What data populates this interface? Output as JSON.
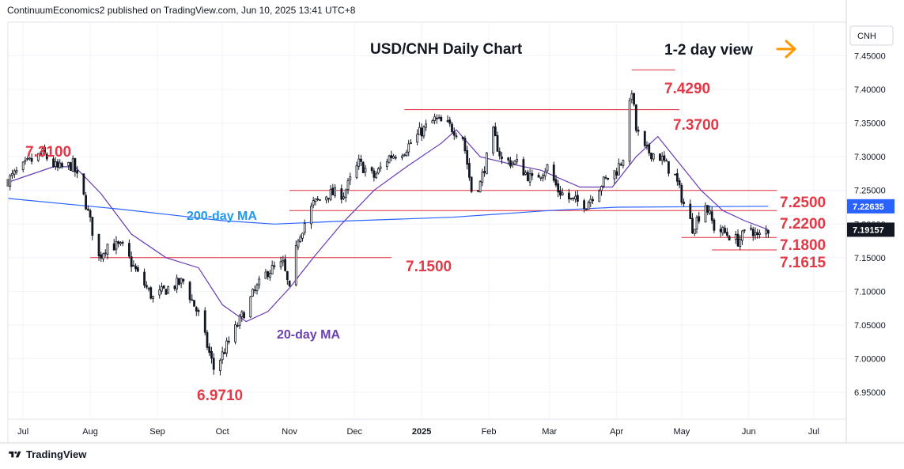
{
  "header": {
    "attribution": "ContinuumEconomics2 published on TradingView.com, Jun 10, 2025 13:41 UTC+8"
  },
  "footer": {
    "brand": "TradingView"
  },
  "chart_data": {
    "type": "candlestick",
    "title": "USD/CNH Daily Chart",
    "subtitle": "1-2 day view",
    "symbol": "CNH",
    "ylim": [
      6.91,
      7.5
    ],
    "y_ticks": [
      "7.45000",
      "7.40000",
      "7.35000",
      "7.30000",
      "7.25000",
      "7.20000",
      "7.15000",
      "7.10000",
      "7.05000",
      "7.00000",
      "6.95000"
    ],
    "y_tick_values": [
      7.45,
      7.4,
      7.35,
      7.3,
      7.25,
      7.2,
      7.15,
      7.1,
      7.05,
      7.0,
      6.95
    ],
    "x_ticks": [
      "Jul",
      "Aug",
      "Sep",
      "Oct",
      "Nov",
      "Dec",
      "2025",
      "Feb",
      "Mar",
      "Apr",
      "May",
      "Jun",
      "Jul"
    ],
    "x_tick_dates": [
      "2024-07-01",
      "2024-08-01",
      "2024-09-01",
      "2024-10-01",
      "2024-11-01",
      "2024-12-01",
      "2025-01-01",
      "2025-02-01",
      "2025-03-01",
      "2025-04-01",
      "2025-05-01",
      "2025-06-01",
      "2025-07-01"
    ],
    "date_range": [
      "2024-06-24",
      "2025-07-16"
    ],
    "price_badges": [
      {
        "label": "7.22635",
        "value": 7.22635,
        "color": "#2962ff"
      },
      {
        "label": "7.19157",
        "value": 7.19157,
        "color": "#131722"
      }
    ],
    "levels": [
      {
        "label": "7.4290",
        "value": 7.429,
        "from": "2025-04-08",
        "to": "2025-04-28"
      },
      {
        "label": "7.3700",
        "value": 7.37,
        "from": "2024-12-24",
        "to": "2025-04-30"
      },
      {
        "label": "7.3100",
        "value": 7.31,
        "label_only": true
      },
      {
        "label": "7.2500",
        "value": 7.25,
        "from": "2024-11-01",
        "to": "2025-06-14"
      },
      {
        "label": "7.2200",
        "value": 7.22,
        "from": "2024-11-01",
        "to": "2025-06-14"
      },
      {
        "label": "7.1800",
        "value": 7.18,
        "from": "2025-05-01",
        "to": "2025-06-14"
      },
      {
        "label": "7.1615",
        "value": 7.1615,
        "from": "2025-05-15",
        "to": "2025-06-14"
      },
      {
        "label": "7.1500",
        "value": 7.15,
        "from": "2024-08-01",
        "to": "2024-12-18"
      },
      {
        "label": "6.9710",
        "value": 6.971,
        "label_only": true
      }
    ],
    "ma_labels": {
      "ma200": "200-day MA",
      "ma20": "20-day MA"
    },
    "series": [
      {
        "name": "USD/CNH",
        "anchors": [
          [
            "2024-06-24",
            7.265
          ],
          [
            "2024-07-03",
            7.29
          ],
          [
            "2024-07-10",
            7.305
          ],
          [
            "2024-07-17",
            7.282
          ],
          [
            "2024-07-24",
            7.288
          ],
          [
            "2024-07-30",
            7.23
          ],
          [
            "2024-08-05",
            7.15
          ],
          [
            "2024-08-09",
            7.17
          ],
          [
            "2024-08-16",
            7.165
          ],
          [
            "2024-08-23",
            7.125
          ],
          [
            "2024-08-30",
            7.09
          ],
          [
            "2024-09-06",
            7.105
          ],
          [
            "2024-09-13",
            7.115
          ],
          [
            "2024-09-20",
            7.065
          ],
          [
            "2024-09-27",
            6.985
          ],
          [
            "2024-09-30",
            7.0
          ],
          [
            "2024-10-08",
            7.05
          ],
          [
            "2024-10-15",
            7.095
          ],
          [
            "2024-10-22",
            7.13
          ],
          [
            "2024-10-29",
            7.14
          ],
          [
            "2024-11-01",
            7.1
          ],
          [
            "2024-11-05",
            7.18
          ],
          [
            "2024-11-12",
            7.23
          ],
          [
            "2024-11-19",
            7.245
          ],
          [
            "2024-11-26",
            7.245
          ],
          [
            "2024-12-03",
            7.29
          ],
          [
            "2024-12-10",
            7.27
          ],
          [
            "2024-12-17",
            7.3
          ],
          [
            "2024-12-24",
            7.31
          ],
          [
            "2024-12-31",
            7.335
          ],
          [
            "2025-01-07",
            7.355
          ],
          [
            "2025-01-14",
            7.345
          ],
          [
            "2025-01-20",
            7.33
          ],
          [
            "2025-01-24",
            7.25
          ],
          [
            "2025-01-28",
            7.26
          ],
          [
            "2025-02-03",
            7.335
          ],
          [
            "2025-02-07",
            7.295
          ],
          [
            "2025-02-14",
            7.29
          ],
          [
            "2025-02-21",
            7.265
          ],
          [
            "2025-02-28",
            7.285
          ],
          [
            "2025-03-05",
            7.25
          ],
          [
            "2025-03-11",
            7.235
          ],
          [
            "2025-03-18",
            7.23
          ],
          [
            "2025-03-25",
            7.26
          ],
          [
            "2025-04-01",
            7.28
          ],
          [
            "2025-04-04",
            7.3
          ],
          [
            "2025-04-08",
            7.4
          ],
          [
            "2025-04-10",
            7.34
          ],
          [
            "2025-04-14",
            7.31
          ],
          [
            "2025-04-21",
            7.3
          ],
          [
            "2025-04-28",
            7.27
          ],
          [
            "2025-05-02",
            7.23
          ],
          [
            "2025-05-06",
            7.195
          ],
          [
            "2025-05-12",
            7.23
          ],
          [
            "2025-05-16",
            7.195
          ],
          [
            "2025-05-22",
            7.185
          ],
          [
            "2025-05-27",
            7.175
          ],
          [
            "2025-06-02",
            7.195
          ],
          [
            "2025-06-05",
            7.18
          ],
          [
            "2025-06-10",
            7.1916
          ]
        ]
      }
    ],
    "ma200_anchors": [
      [
        "2024-06-24",
        7.238
      ],
      [
        "2024-08-15",
        7.222
      ],
      [
        "2024-10-01",
        7.205
      ],
      [
        "2024-10-25",
        7.2
      ],
      [
        "2024-12-01",
        7.205
      ],
      [
        "2025-01-15",
        7.21
      ],
      [
        "2025-03-01",
        7.22
      ],
      [
        "2025-04-01",
        7.225
      ],
      [
        "2025-06-10",
        7.2264
      ]
    ],
    "ma20_anchors": [
      [
        "2024-06-24",
        7.262
      ],
      [
        "2024-07-15",
        7.285
      ],
      [
        "2024-07-25",
        7.285
      ],
      [
        "2024-08-06",
        7.245
      ],
      [
        "2024-08-20",
        7.185
      ],
      [
        "2024-09-05",
        7.15
      ],
      [
        "2024-09-20",
        7.135
      ],
      [
        "2024-10-01",
        7.08
      ],
      [
        "2024-10-12",
        7.055
      ],
      [
        "2024-10-22",
        7.07
      ],
      [
        "2024-11-01",
        7.105
      ],
      [
        "2024-11-12",
        7.15
      ],
      [
        "2024-11-25",
        7.2
      ],
      [
        "2024-12-10",
        7.25
      ],
      [
        "2024-12-25",
        7.285
      ],
      [
        "2025-01-10",
        7.32
      ],
      [
        "2025-01-17",
        7.34
      ],
      [
        "2025-01-28",
        7.3
      ],
      [
        "2025-02-10",
        7.29
      ],
      [
        "2025-02-25",
        7.28
      ],
      [
        "2025-03-15",
        7.255
      ],
      [
        "2025-03-30",
        7.255
      ],
      [
        "2025-04-10",
        7.3
      ],
      [
        "2025-04-20",
        7.33
      ],
      [
        "2025-04-30",
        7.29
      ],
      [
        "2025-05-10",
        7.25
      ],
      [
        "2025-05-20",
        7.22
      ],
      [
        "2025-05-30",
        7.205
      ],
      [
        "2025-06-10",
        7.1916
      ]
    ]
  }
}
